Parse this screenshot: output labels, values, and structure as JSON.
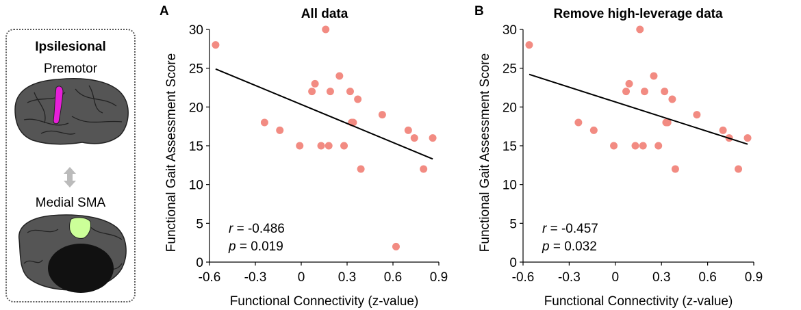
{
  "inset": {
    "heading": "Ipsilesional",
    "region_top": "Premotor",
    "region_bottom": "Medial SMA",
    "colors": {
      "premotor": "#e61fd8",
      "sma": "#ccff99",
      "cortex": "#555555",
      "arrow": "#bbbbbb"
    }
  },
  "chart_data": [
    {
      "type": "scatter",
      "panel_label": "A",
      "title": "All data",
      "xlabel": "Functional Connectivity (z-value)",
      "ylabel": "Functional Gait Assessment Score",
      "xlim": [
        -0.6,
        0.9
      ],
      "ylim": [
        0,
        30
      ],
      "xticks": [
        "-0.6",
        "-0.3",
        "0",
        "0.3",
        "0.6",
        "0.9"
      ],
      "yticks": [
        "0",
        "5",
        "10",
        "15",
        "20",
        "25",
        "30"
      ],
      "points": [
        [
          -0.56,
          28
        ],
        [
          0.16,
          30
        ],
        [
          -0.24,
          18
        ],
        [
          -0.14,
          17
        ],
        [
          -0.01,
          15
        ],
        [
          0.07,
          22
        ],
        [
          0.09,
          23
        ],
        [
          0.13,
          15
        ],
        [
          0.18,
          15
        ],
        [
          0.19,
          22
        ],
        [
          0.25,
          24
        ],
        [
          0.28,
          15
        ],
        [
          0.32,
          22
        ],
        [
          0.33,
          18
        ],
        [
          0.34,
          18
        ],
        [
          0.37,
          21
        ],
        [
          0.39,
          12
        ],
        [
          0.53,
          19
        ],
        [
          0.62,
          2
        ],
        [
          0.7,
          17
        ],
        [
          0.74,
          16
        ],
        [
          0.8,
          12
        ],
        [
          0.86,
          16
        ]
      ],
      "fit_line": {
        "x": [
          -0.56,
          0.86
        ],
        "y": [
          24.9,
          13.3
        ]
      },
      "stats": {
        "r_label": "r",
        "r_value": " = -0.486",
        "p_label": "p",
        "p_value": " = 0.019"
      },
      "point_color": "#f28b82",
      "line_color": "#000000"
    },
    {
      "type": "scatter",
      "panel_label": "B",
      "title": "Remove high-leverage data",
      "xlabel": "Functional Connectivity (z-value)",
      "ylabel": "Functional Gait Assessment Score",
      "xlim": [
        -0.6,
        0.9
      ],
      "ylim": [
        0,
        30
      ],
      "xticks": [
        "-0.6",
        "-0.3",
        "0",
        "0.3",
        "0.6",
        "0.9"
      ],
      "yticks": [
        "0",
        "5",
        "10",
        "15",
        "20",
        "25",
        "30"
      ],
      "points": [
        [
          -0.56,
          28
        ],
        [
          0.16,
          30
        ],
        [
          -0.24,
          18
        ],
        [
          -0.14,
          17
        ],
        [
          -0.01,
          15
        ],
        [
          0.07,
          22
        ],
        [
          0.09,
          23
        ],
        [
          0.13,
          15
        ],
        [
          0.18,
          15
        ],
        [
          0.19,
          22
        ],
        [
          0.25,
          24
        ],
        [
          0.28,
          15
        ],
        [
          0.32,
          22
        ],
        [
          0.33,
          18
        ],
        [
          0.34,
          18
        ],
        [
          0.37,
          21
        ],
        [
          0.39,
          12
        ],
        [
          0.53,
          19
        ],
        [
          0.7,
          17
        ],
        [
          0.74,
          16
        ],
        [
          0.8,
          12
        ],
        [
          0.86,
          16
        ]
      ],
      "fit_line": {
        "x": [
          -0.56,
          0.86
        ],
        "y": [
          24.2,
          15.2
        ]
      },
      "stats": {
        "r_label": "r",
        "r_value": " = -0.457",
        "p_label": "p",
        "p_value": " = 0.032"
      },
      "point_color": "#f28b82",
      "line_color": "#000000"
    }
  ]
}
